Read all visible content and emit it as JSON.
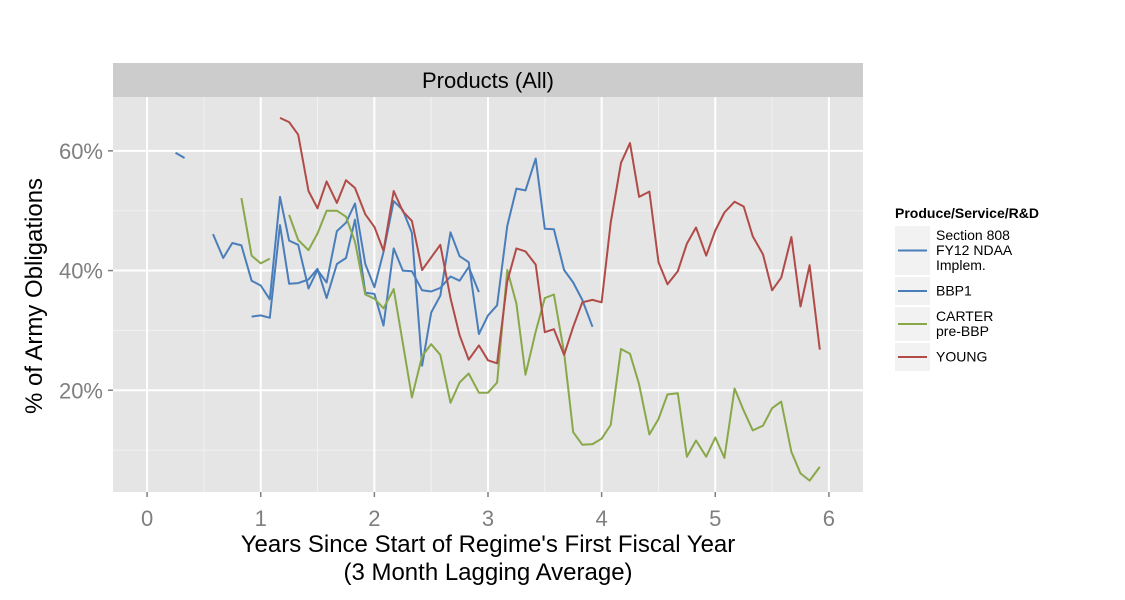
{
  "chart_data": {
    "type": "line",
    "panel_title": "Products (All)",
    "xlabel": [
      "Years Since Start of Regime's First Fiscal Year",
      "(3 Month Lagging Average)"
    ],
    "ylabel": "% of Army Obligations",
    "xlim": [
      -0.3,
      6.3
    ],
    "ylim": [
      0.03,
      0.69
    ],
    "x_ticks": [
      0,
      1,
      2,
      3,
      4,
      5,
      6
    ],
    "x_tick_labels": [
      "0",
      "1",
      "2",
      "3",
      "4",
      "5",
      "6"
    ],
    "y_ticks": [
      0.2,
      0.4,
      0.6
    ],
    "y_tick_labels": [
      "20%",
      "40%",
      "60%"
    ],
    "y_minor_ticks": [
      0.1,
      0.3,
      0.5
    ],
    "grid": true,
    "legend": {
      "title": "Produce/Service/R&D",
      "position": "right"
    },
    "series": [
      {
        "name": [
          "Section 808",
          "FY12 NDAA",
          "Implem."
        ],
        "color": "#4a7ebb",
        "segments": [
          [
            [
              0.25,
              0.597
            ],
            [
              0.33,
              0.588
            ]
          ],
          [
            [
              0.58,
              0.461
            ],
            [
              0.67,
              0.421
            ],
            [
              0.75,
              0.446
            ],
            [
              0.83,
              0.442
            ],
            [
              0.92,
              0.383
            ],
            [
              1.0,
              0.375
            ],
            [
              1.08,
              0.352
            ],
            [
              1.17,
              0.523
            ],
            [
              1.25,
              0.45
            ],
            [
              1.33,
              0.443
            ],
            [
              1.42,
              0.37
            ],
            [
              1.5,
              0.401
            ],
            [
              1.58,
              0.38
            ],
            [
              1.67,
              0.466
            ],
            [
              1.75,
              0.48
            ],
            [
              1.83,
              0.512
            ],
            [
              1.92,
              0.411
            ],
            [
              2.0,
              0.372
            ],
            [
              2.08,
              0.431
            ],
            [
              2.17,
              0.516
            ],
            [
              2.25,
              0.501
            ],
            [
              2.33,
              0.463
            ],
            [
              2.42,
              0.241
            ],
            [
              2.5,
              0.33
            ],
            [
              2.58,
              0.358
            ],
            [
              2.67,
              0.464
            ],
            [
              2.75,
              0.424
            ],
            [
              2.83,
              0.414
            ],
            [
              2.92,
              0.294
            ],
            [
              3.0,
              0.325
            ],
            [
              3.08,
              0.342
            ],
            [
              3.17,
              0.475
            ],
            [
              3.25,
              0.537
            ],
            [
              3.33,
              0.534
            ],
            [
              3.42,
              0.587
            ],
            [
              3.5,
              0.47
            ],
            [
              3.58,
              0.469
            ],
            [
              3.67,
              0.401
            ],
            [
              3.75,
              0.38
            ],
            [
              3.83,
              0.351
            ],
            [
              3.92,
              0.306
            ]
          ]
        ]
      },
      {
        "name": [
          "BBP1"
        ],
        "color": "#4a7ebb",
        "segments": [
          [
            [
              0.92,
              0.323
            ],
            [
              1.0,
              0.325
            ],
            [
              1.08,
              0.321
            ],
            [
              1.17,
              0.476
            ],
            [
              1.25,
              0.378
            ],
            [
              1.33,
              0.379
            ],
            [
              1.42,
              0.385
            ],
            [
              1.5,
              0.403
            ],
            [
              1.58,
              0.354
            ],
            [
              1.67,
              0.411
            ],
            [
              1.75,
              0.421
            ],
            [
              1.83,
              0.485
            ],
            [
              1.92,
              0.363
            ],
            [
              2.0,
              0.361
            ],
            [
              2.08,
              0.308
            ],
            [
              2.17,
              0.437
            ],
            [
              2.25,
              0.4
            ],
            [
              2.33,
              0.399
            ],
            [
              2.42,
              0.367
            ],
            [
              2.5,
              0.365
            ],
            [
              2.58,
              0.371
            ],
            [
              2.67,
              0.39
            ],
            [
              2.75,
              0.383
            ],
            [
              2.83,
              0.406
            ],
            [
              2.92,
              0.364
            ]
          ]
        ]
      },
      {
        "name": [
          "CARTER",
          "pre-BBP"
        ],
        "color": "#88a84a",
        "segments": [
          [
            [
              0.83,
              0.521
            ],
            [
              0.92,
              0.425
            ],
            [
              1.0,
              0.412
            ],
            [
              1.08,
              0.42
            ]
          ],
          [
            [
              1.25,
              0.493
            ],
            [
              1.33,
              0.451
            ],
            [
              1.42,
              0.434
            ],
            [
              1.5,
              0.462
            ],
            [
              1.58,
              0.5
            ],
            [
              1.67,
              0.5
            ],
            [
              1.75,
              0.49
            ],
            [
              1.83,
              0.448
            ],
            [
              1.92,
              0.36
            ],
            [
              2.0,
              0.353
            ],
            [
              2.08,
              0.337
            ],
            [
              2.17,
              0.369
            ],
            [
              2.25,
              0.279
            ],
            [
              2.33,
              0.188
            ],
            [
              2.42,
              0.257
            ],
            [
              2.5,
              0.277
            ],
            [
              2.58,
              0.259
            ],
            [
              2.67,
              0.179
            ],
            [
              2.75,
              0.213
            ],
            [
              2.83,
              0.228
            ],
            [
              2.92,
              0.196
            ],
            [
              3.0,
              0.196
            ],
            [
              3.08,
              0.213
            ],
            [
              3.17,
              0.401
            ],
            [
              3.25,
              0.345
            ],
            [
              3.33,
              0.226
            ],
            [
              3.42,
              0.298
            ],
            [
              3.5,
              0.354
            ],
            [
              3.58,
              0.36
            ],
            [
              3.67,
              0.263
            ],
            [
              3.75,
              0.13
            ],
            [
              3.83,
              0.109
            ],
            [
              3.92,
              0.11
            ],
            [
              4.0,
              0.119
            ],
            [
              4.08,
              0.142
            ],
            [
              4.17,
              0.269
            ],
            [
              4.25,
              0.261
            ],
            [
              4.33,
              0.21
            ],
            [
              4.42,
              0.126
            ],
            [
              4.5,
              0.152
            ],
            [
              4.58,
              0.193
            ],
            [
              4.67,
              0.195
            ],
            [
              4.75,
              0.089
            ],
            [
              4.83,
              0.116
            ],
            [
              4.92,
              0.089
            ],
            [
              5.0,
              0.121
            ],
            [
              5.08,
              0.087
            ],
            [
              5.17,
              0.203
            ],
            [
              5.25,
              0.166
            ],
            [
              5.33,
              0.133
            ],
            [
              5.42,
              0.141
            ],
            [
              5.5,
              0.17
            ],
            [
              5.58,
              0.181
            ],
            [
              5.67,
              0.097
            ],
            [
              5.75,
              0.061
            ],
            [
              5.83,
              0.049
            ],
            [
              5.92,
              0.072
            ]
          ]
        ]
      },
      {
        "name": [
          "YOUNG"
        ],
        "color": "#b04b48",
        "segments": [
          [
            [
              1.17,
              0.655
            ],
            [
              1.25,
              0.648
            ],
            [
              1.33,
              0.627
            ],
            [
              1.42,
              0.533
            ],
            [
              1.5,
              0.504
            ],
            [
              1.58,
              0.549
            ],
            [
              1.67,
              0.513
            ],
            [
              1.75,
              0.551
            ],
            [
              1.83,
              0.538
            ],
            [
              1.92,
              0.494
            ],
            [
              2.0,
              0.473
            ],
            [
              2.08,
              0.433
            ],
            [
              2.17,
              0.533
            ],
            [
              2.25,
              0.499
            ],
            [
              2.33,
              0.483
            ],
            [
              2.42,
              0.401
            ],
            [
              2.5,
              0.422
            ],
            [
              2.58,
              0.443
            ],
            [
              2.67,
              0.354
            ],
            [
              2.75,
              0.292
            ],
            [
              2.83,
              0.251
            ],
            [
              2.92,
              0.275
            ],
            [
              3.0,
              0.25
            ],
            [
              3.08,
              0.245
            ],
            [
              3.17,
              0.382
            ],
            [
              3.25,
              0.437
            ],
            [
              3.33,
              0.432
            ],
            [
              3.42,
              0.41
            ],
            [
              3.5,
              0.297
            ],
            [
              3.58,
              0.302
            ],
            [
              3.67,
              0.259
            ],
            [
              3.75,
              0.306
            ],
            [
              3.83,
              0.347
            ],
            [
              3.92,
              0.351
            ],
            [
              4.0,
              0.347
            ],
            [
              4.08,
              0.48
            ],
            [
              4.17,
              0.58
            ],
            [
              4.25,
              0.613
            ],
            [
              4.33,
              0.523
            ],
            [
              4.42,
              0.532
            ],
            [
              4.5,
              0.414
            ],
            [
              4.58,
              0.377
            ],
            [
              4.67,
              0.399
            ],
            [
              4.75,
              0.445
            ],
            [
              4.83,
              0.472
            ],
            [
              4.92,
              0.425
            ],
            [
              5.0,
              0.467
            ],
            [
              5.08,
              0.497
            ],
            [
              5.17,
              0.515
            ],
            [
              5.25,
              0.507
            ],
            [
              5.33,
              0.457
            ],
            [
              5.42,
              0.427
            ],
            [
              5.5,
              0.367
            ],
            [
              5.58,
              0.388
            ],
            [
              5.67,
              0.456
            ],
            [
              5.75,
              0.34
            ],
            [
              5.83,
              0.409
            ],
            [
              5.92,
              0.268
            ]
          ]
        ]
      }
    ]
  }
}
